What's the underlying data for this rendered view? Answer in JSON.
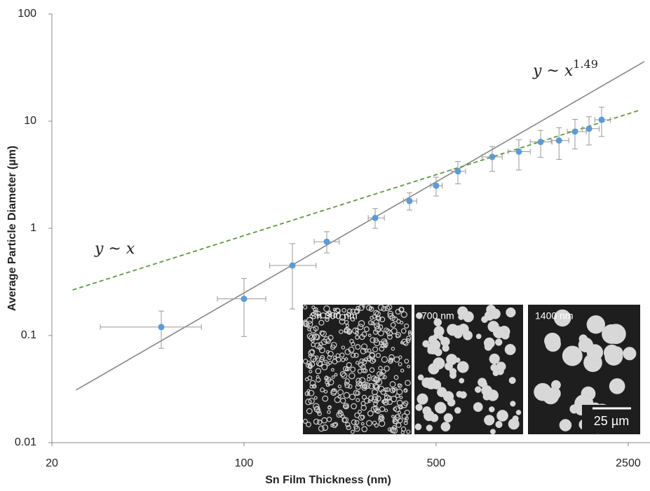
{
  "chart_data": {
    "type": "scatter",
    "x_label": "Sn Film Thickness (nm)",
    "y_label": "Average Particle Diameter (µm)",
    "xscale": "log",
    "yscale": "log",
    "xlim": [
      20,
      3000
    ],
    "ylim": [
      0.01,
      100
    ],
    "xticks": [
      20,
      100,
      500,
      2500
    ],
    "yticks": [
      0.01,
      0.1,
      1,
      10,
      100
    ],
    "series": [
      {
        "color": "#5b9bd5",
        "error_color": "#999999",
        "x": [
          50,
          100,
          150,
          200,
          300,
          400,
          500,
          600,
          800,
          1000,
          1200,
          1400,
          1600,
          1800,
          2000
        ],
        "values": [
          0.12,
          0.22,
          0.45,
          0.75,
          1.25,
          1.8,
          2.5,
          3.4,
          4.64,
          5.2,
          6.4,
          6.6,
          8.0,
          8.5,
          10.3
        ],
        "x_low": [
          30,
          80,
          124,
          180,
          283,
          380,
          477,
          570,
          735,
          915,
          1100,
          1310,
          1500,
          1700,
          1890
        ],
        "x_high": [
          70,
          120,
          183,
          222,
          324,
          425,
          526,
          640,
          870,
          1100,
          1320,
          1520,
          1760,
          1960,
          2150
        ],
        "y_low": [
          0.076,
          0.098,
          0.177,
          0.59,
          1.0,
          1.48,
          2.0,
          2.6,
          3.4,
          3.5,
          4.6,
          4.4,
          5.5,
          6.0,
          7.2
        ],
        "y_high": [
          0.169,
          0.34,
          0.72,
          0.93,
          1.53,
          2.15,
          3.0,
          4.2,
          5.8,
          6.7,
          8.2,
          8.7,
          10.4,
          11,
          13.5
        ]
      }
    ],
    "fit_lines": [
      {
        "color": "#888888",
        "dash": false,
        "x": [
          24.5,
          2860
        ],
        "values": [
          0.031,
          36
        ]
      },
      {
        "color": "#5b9b3a",
        "dash": true,
        "x": [
          23.8,
          2760
        ],
        "values": [
          0.266,
          12.7
        ]
      }
    ],
    "annotations": [
      {
        "text": "y ~ x",
        "sup": "1.49"
      },
      {
        "text": "y ~ x"
      }
    ],
    "insets": [
      "Sn 300 nm",
      "700 nm",
      "1400 nm"
    ],
    "scale_bar": "25 µm"
  }
}
